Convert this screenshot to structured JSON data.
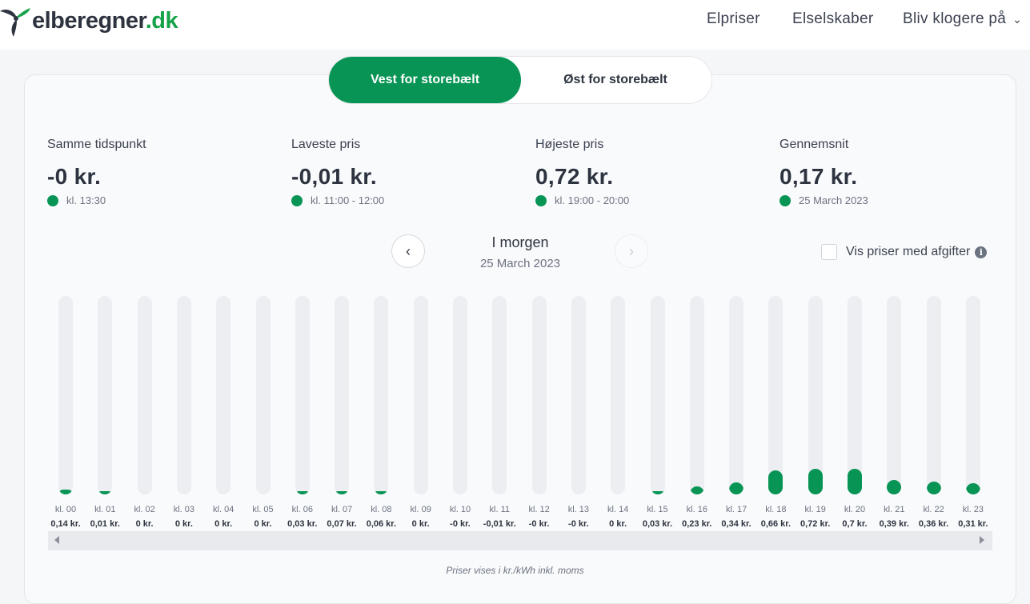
{
  "header": {
    "logo_name": "elberegner",
    "logo_tld": ".dk",
    "nav": [
      {
        "label": "Elpriser"
      },
      {
        "label": "Elselskaber"
      },
      {
        "label": "Bliv klogere på"
      }
    ]
  },
  "region_toggle": {
    "active": "Vest for storebælt",
    "inactive": "Øst for storebælt"
  },
  "stats": [
    {
      "label": "Samme tidspunkt",
      "value": "-0 kr.",
      "sub": "kl. 13:30"
    },
    {
      "label": "Laveste pris",
      "value": "-0,01 kr.",
      "sub": "kl. 11:00 - 12:00"
    },
    {
      "label": "Højeste pris",
      "value": "0,72 kr.",
      "sub": "kl. 19:00 - 20:00"
    },
    {
      "label": "Gennemsnit",
      "value": "0,17 kr.",
      "sub": "25 March 2023"
    }
  ],
  "date_nav": {
    "title": "I morgen",
    "date": "25 March 2023",
    "prev_icon": "chevron-left-icon",
    "next_icon": "chevron-right-icon"
  },
  "fees_toggle": {
    "label": "Vis priser med afgifter",
    "checked": false,
    "info_icon": "info-icon"
  },
  "colors": {
    "accent": "#079455",
    "track": "#eceef2"
  },
  "chart_data": {
    "type": "bar",
    "categories": [
      "kl. 00",
      "kl. 01",
      "kl. 02",
      "kl. 03",
      "kl. 04",
      "kl. 05",
      "kl. 06",
      "kl. 07",
      "kl. 08",
      "kl. 09",
      "kl. 10",
      "kl. 11",
      "kl. 12",
      "kl. 13",
      "kl. 14",
      "kl. 15",
      "kl. 16",
      "kl. 17",
      "kl. 18",
      "kl. 19",
      "kl. 20",
      "kl. 21",
      "kl. 22",
      "kl. 23"
    ],
    "values": [
      0.14,
      0.01,
      0,
      0,
      0,
      0,
      0.03,
      0.07,
      0.06,
      0,
      -0.001,
      -0.01,
      -0.001,
      -0.001,
      0,
      0.03,
      0.23,
      0.34,
      0.66,
      0.72,
      0.7,
      0.39,
      0.36,
      0.31
    ],
    "labels": [
      "0,14 kr.",
      "0,01 kr.",
      "0 kr.",
      "0 kr.",
      "0 kr.",
      "0 kr.",
      "0,03 kr.",
      "0,07 kr.",
      "0,06 kr.",
      "0 kr.",
      "-0 kr.",
      "-0,01 kr.",
      "-0 kr.",
      "-0 kr.",
      "0 kr.",
      "0,03 kr.",
      "0,23 kr.",
      "0,34 kr.",
      "0,66 kr.",
      "0,72 kr.",
      "0,7 kr.",
      "0,39 kr.",
      "0,36 kr.",
      "0,31 kr."
    ],
    "title": "",
    "xlabel": "",
    "ylabel": "",
    "ylim": [
      0,
      5.5
    ]
  },
  "footnote": "Priser vises i kr./kWh inkl. moms"
}
